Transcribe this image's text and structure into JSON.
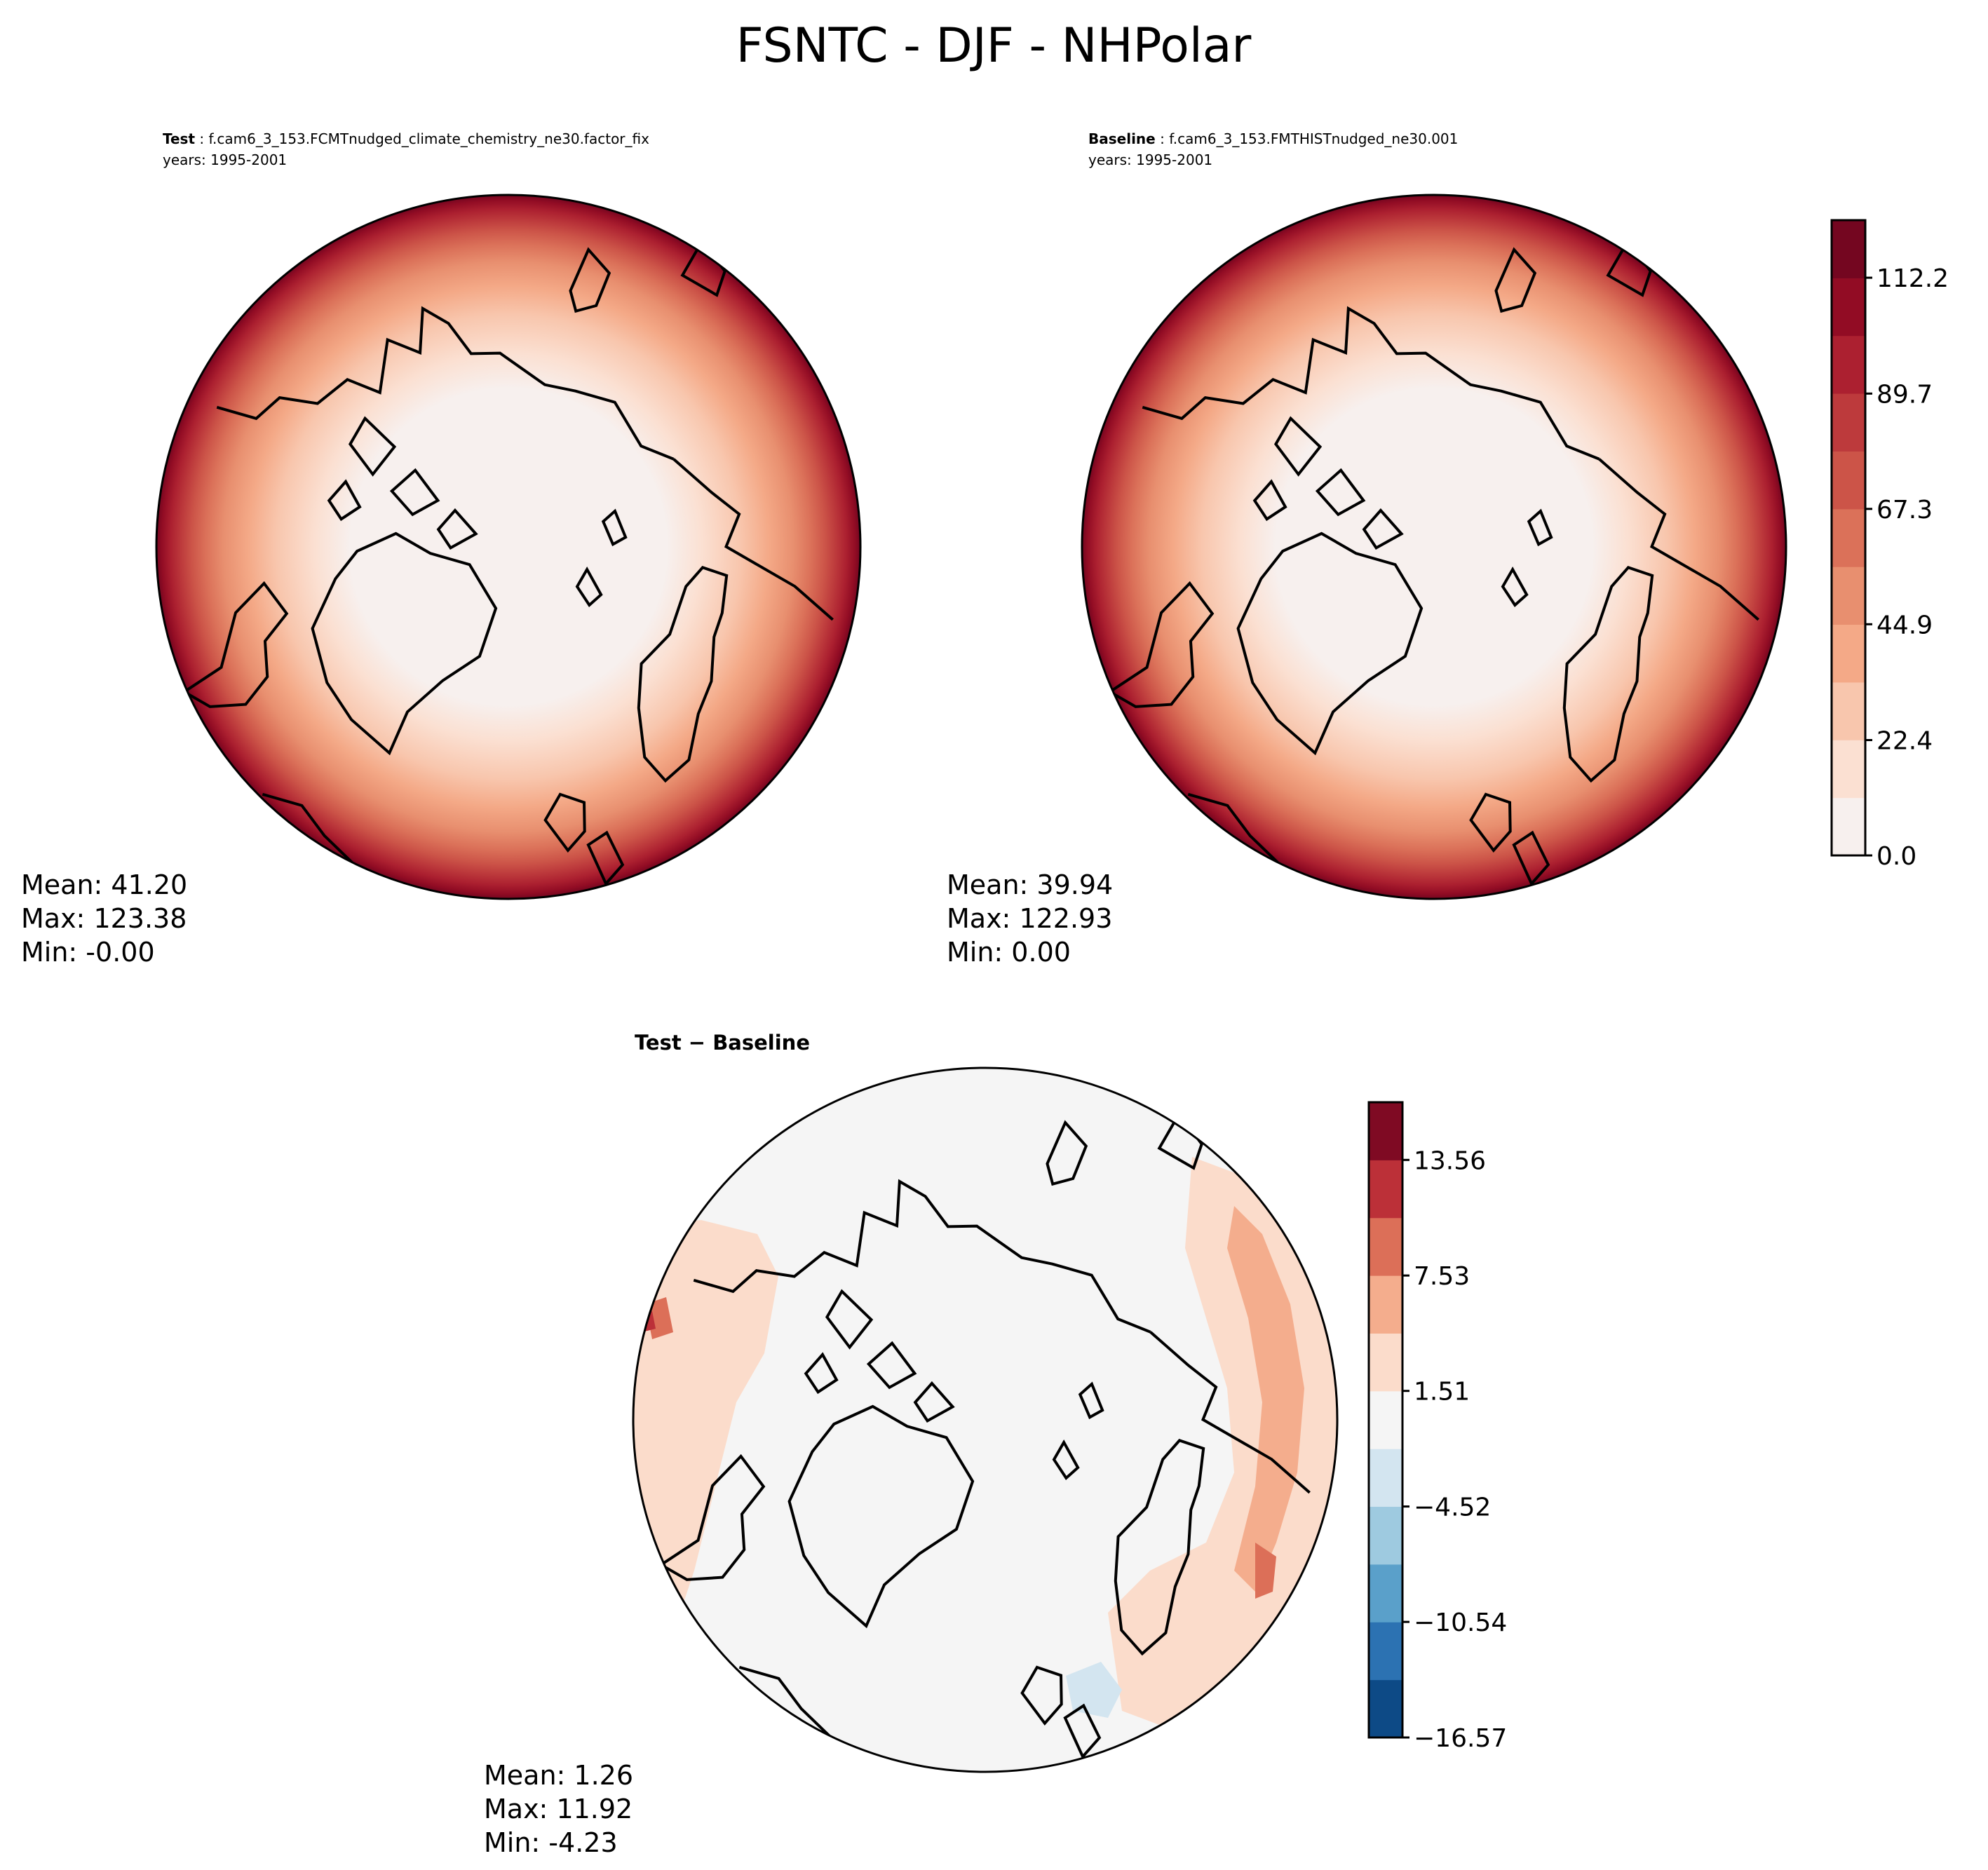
{
  "figure": {
    "title": "FSNTC - DJF - NHPolar"
  },
  "panels": {
    "test": {
      "label": "Test",
      "case": "f.cam6_3_153.FCMTnudged_climate_chemistry_ne30.factor_fix",
      "years": "years: 1995-2001",
      "stats": {
        "mean": "Mean: 41.20",
        "max": "Max: 123.38",
        "min": "Min: -0.00"
      }
    },
    "baseline": {
      "label": "Baseline",
      "case": "f.cam6_3_153.FMTHISTnudged_ne30.001",
      "years": "years: 1995-2001",
      "stats": {
        "mean": "Mean: 39.94",
        "max": "Max: 122.93",
        "min": "Min:  0.00"
      }
    },
    "diff": {
      "title": "Test − Baseline",
      "stats": {
        "mean": "Mean:  1.26",
        "max": "Max: 11.92",
        "min": "Min: -4.23"
      }
    }
  },
  "chart_data": [
    {
      "type": "heatmap",
      "panel": "test",
      "projection": "north-polar-stereographic",
      "field": "FSNTC",
      "season": "DJF",
      "region": "NHPolar",
      "mean": 41.2,
      "max": 123.38,
      "min": -0.0,
      "note": "Filled contours increase radially from ~0 over the pole to >112 at the southern edge"
    },
    {
      "type": "heatmap",
      "panel": "baseline",
      "projection": "north-polar-stereographic",
      "mean": 39.94,
      "max": 122.93,
      "min": 0.0
    },
    {
      "type": "heatmap",
      "panel": "diff",
      "projection": "north-polar-stereographic",
      "mean": 1.26,
      "max": 11.92,
      "min": -4.23,
      "note": "Mostly near zero; positive (1.5–7.5) over the Pacific and Siberian margins, small negative patch near Scandinavia"
    }
  ],
  "colorbars": {
    "main": {
      "range": [
        0.0,
        123.38
      ],
      "levels": [
        0.0,
        11.2,
        22.4,
        33.7,
        44.9,
        56.1,
        67.3,
        78.5,
        89.7,
        100.9,
        112.2,
        123.4
      ],
      "ticks": [
        "0.0",
        "22.4",
        "44.9",
        "67.3",
        "89.7",
        "112.2"
      ],
      "colors": [
        "#f7f0ee",
        "#fbe0d2",
        "#f8c6ad",
        "#f4a987",
        "#e88f6f",
        "#db7159",
        "#cc5448",
        "#bd3a3c",
        "#ac2030",
        "#920c24",
        "#740620"
      ]
    },
    "diff": {
      "range": [
        -16.57,
        16.57
      ],
      "ticks": [
        "−16.57",
        "−10.54",
        "−4.52",
        "1.51",
        "7.53",
        "13.56"
      ],
      "colors": [
        "#0d4a86",
        "#2c72b2",
        "#5aa0ca",
        "#9ecae0",
        "#d3e5f0",
        "#f5f5f5",
        "#fbdccb",
        "#f4ad8d",
        "#dc6f58",
        "#bc3038",
        "#7f0a23"
      ]
    }
  }
}
